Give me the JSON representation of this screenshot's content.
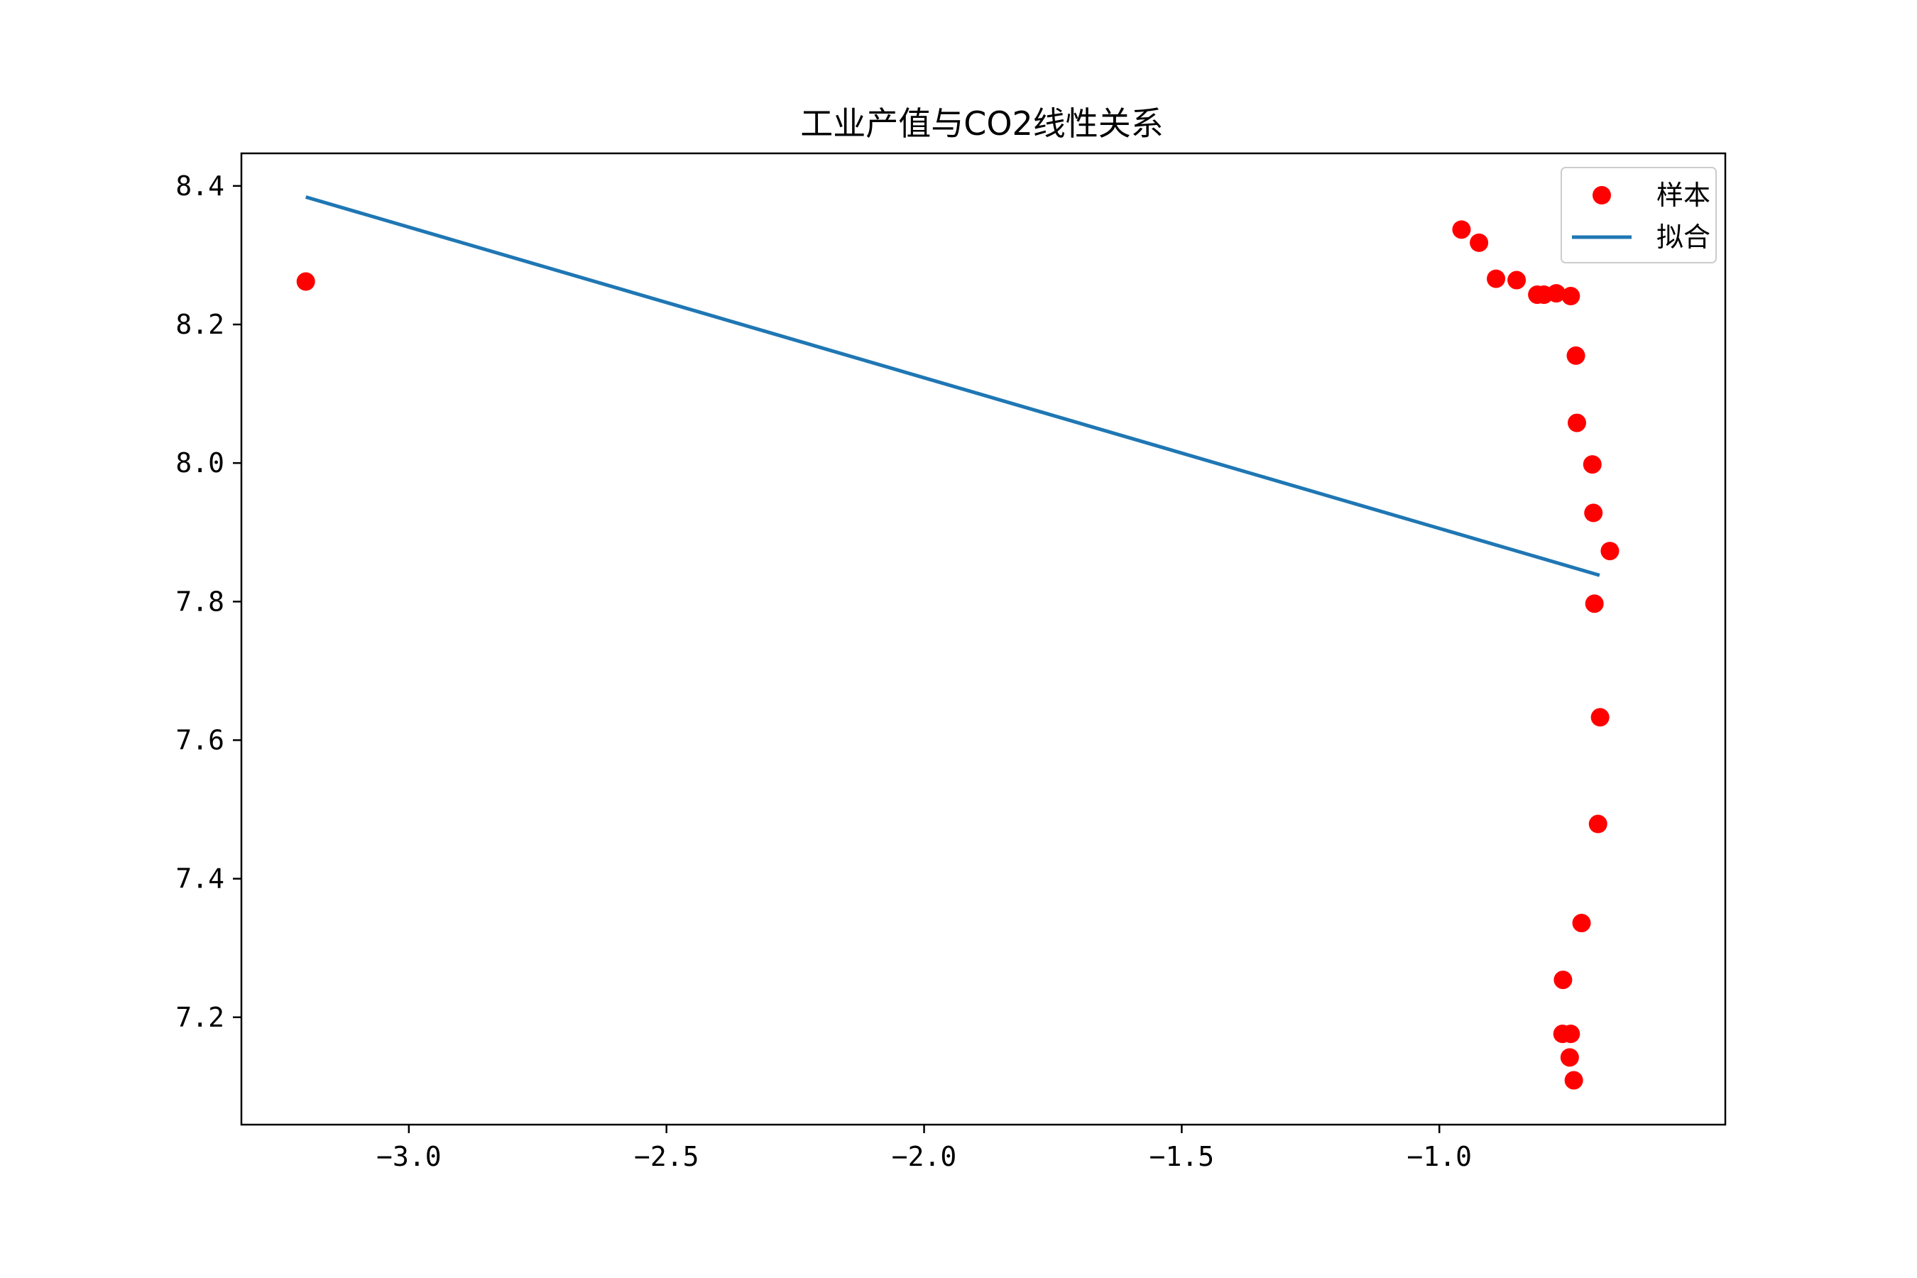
{
  "chart_data": {
    "type": "scatter",
    "title": "工业产值与CO2线性关系",
    "xlabel": "",
    "ylabel": "",
    "xlim": [
      -3.325,
      -0.445
    ],
    "ylim": [
      7.045,
      8.447
    ],
    "x_ticks": [
      -3.0,
      -2.5,
      -2.0,
      -1.5,
      -1.0
    ],
    "x_tick_labels": [
      "−3.0",
      "−2.5",
      "−2.0",
      "−1.5",
      "−1.0"
    ],
    "y_ticks": [
      7.2,
      7.4,
      7.6,
      7.8,
      8.0,
      8.2,
      8.4
    ],
    "y_tick_labels": [
      "7.2",
      "7.4",
      "7.6",
      "7.8",
      "8.0",
      "8.2",
      "8.4"
    ],
    "grid": false,
    "legend_position": "top-right",
    "colors": {
      "sample": "#ff0000",
      "fit": "#1f77b4",
      "axes": "#000000"
    },
    "series": [
      {
        "name": "样本",
        "kind": "scatter",
        "x": [
          -3.2,
          -0.957,
          -0.923,
          -0.89,
          -0.85,
          -0.81,
          -0.797,
          -0.773,
          -0.745,
          -0.735,
          -0.733,
          -0.703,
          -0.701,
          -0.669,
          -0.699,
          -0.688,
          -0.692,
          -0.724,
          -0.76,
          -0.761,
          -0.745,
          -0.747,
          -0.739
        ],
        "y": [
          8.262,
          8.337,
          8.318,
          8.266,
          8.264,
          8.243,
          8.243,
          8.245,
          8.241,
          8.155,
          8.058,
          7.998,
          7.928,
          7.873,
          7.797,
          7.633,
          7.479,
          7.336,
          7.254,
          7.176,
          7.176,
          7.142,
          7.109
        ]
      },
      {
        "name": "拟合",
        "kind": "line",
        "x": [
          -3.2,
          -0.689
        ],
        "y": [
          8.384,
          7.838
        ]
      }
    ]
  }
}
